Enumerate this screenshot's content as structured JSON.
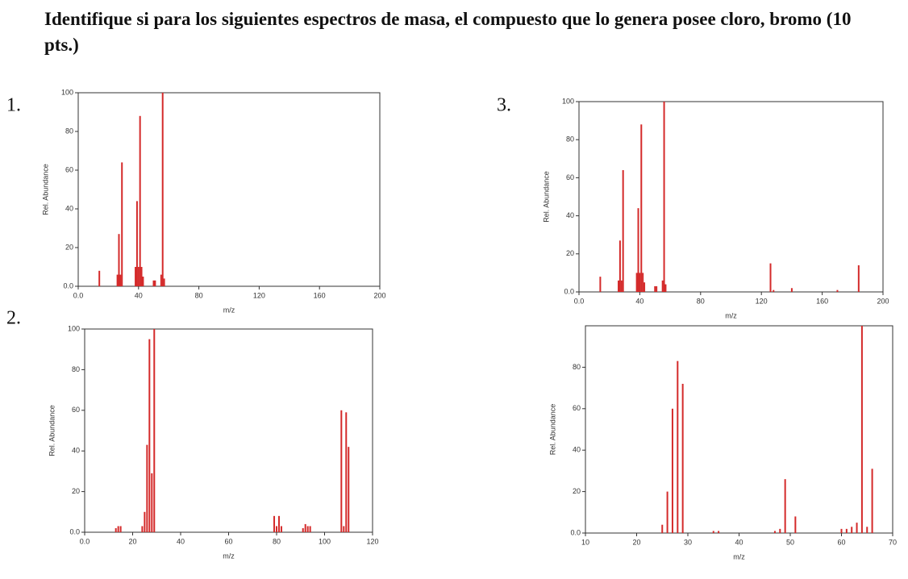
{
  "header": {
    "title": "Identifique si para los siguientes espectros de masa, el compuesto que lo genera posee cloro, bromo  (10 pts.)"
  },
  "labels": [
    "1.",
    "2.",
    "3."
  ],
  "chart_data": [
    {
      "type": "bar",
      "xlabel": "m/z",
      "ylabel": "Rel. Abundance",
      "color": "#d42a2a",
      "x": [
        14,
        26,
        27,
        28,
        29,
        38,
        39,
        40,
        41,
        42,
        43,
        50,
        51,
        55,
        56,
        57
      ],
      "values": [
        8,
        6,
        27,
        6,
        64,
        10,
        44,
        10,
        88,
        10,
        5,
        3,
        3,
        6,
        100,
        4
      ],
      "xlim": [
        0,
        200
      ],
      "xticks": [
        {
          "value": 0,
          "label": "0.0"
        },
        40,
        80,
        120,
        160,
        200
      ],
      "ylim": [
        0,
        100
      ],
      "yticks": [
        {
          "value": 0,
          "label": "0.0"
        },
        20,
        40,
        60,
        80,
        100
      ]
    },
    {
      "type": "bar",
      "xlabel": "m/z",
      "ylabel": "Rel. Abundance",
      "color": "#d42a2a",
      "x": [
        13,
        14,
        15,
        24,
        25,
        26,
        27,
        28,
        29,
        79,
        80,
        81,
        82,
        91,
        92,
        93,
        94,
        107,
        108,
        109,
        110
      ],
      "values": [
        2,
        3,
        3,
        3,
        10,
        43,
        95,
        29,
        100,
        8,
        3,
        8,
        3,
        2,
        4,
        3,
        3,
        60,
        3,
        59,
        42
      ],
      "xlim": [
        0,
        120
      ],
      "xticks": [
        {
          "value": 0,
          "label": "0.0"
        },
        20,
        40,
        60,
        80,
        100,
        120
      ],
      "ylim": [
        0,
        100
      ],
      "yticks": [
        {
          "value": 0,
          "label": "0.0"
        },
        20,
        40,
        60,
        80,
        100
      ]
    },
    {
      "type": "bar",
      "xlabel": "m/z",
      "ylabel": "Rel. Abundance",
      "color": "#d42a2a",
      "x": [
        14,
        26,
        27,
        28,
        29,
        38,
        39,
        40,
        41,
        42,
        43,
        50,
        51,
        55,
        56,
        57,
        126,
        128,
        140,
        170,
        184
      ],
      "values": [
        8,
        6,
        27,
        6,
        64,
        10,
        44,
        10,
        88,
        10,
        5,
        3,
        3,
        6,
        100,
        4,
        15,
        1,
        2,
        1,
        14
      ],
      "xlim": [
        0,
        200
      ],
      "xticks": [
        {
          "value": 0,
          "label": "0.0"
        },
        40,
        80,
        120,
        160,
        200
      ],
      "ylim": [
        0,
        100
      ],
      "yticks": [
        {
          "value": 0,
          "label": "0.0"
        },
        20,
        40,
        60,
        80,
        100
      ]
    },
    {
      "type": "bar",
      "xlabel": "m/z",
      "ylabel": "Rel. Abundance",
      "color": "#d42a2a",
      "x": [
        25,
        26,
        27,
        28,
        29,
        35,
        36,
        47,
        48,
        49,
        51,
        60,
        61,
        62,
        63,
        64,
        65,
        66
      ],
      "values": [
        4,
        20,
        60,
        83,
        72,
        1,
        1,
        1,
        2,
        26,
        8,
        2,
        2,
        3,
        5,
        100,
        3,
        31
      ],
      "xlim": [
        10,
        70
      ],
      "xticks": [
        10,
        20,
        30,
        40,
        50,
        60,
        70
      ],
      "ylim": [
        0,
        100
      ],
      "yticks": [
        {
          "value": 0,
          "label": "0.0"
        },
        20,
        40,
        60,
        80
      ]
    }
  ]
}
